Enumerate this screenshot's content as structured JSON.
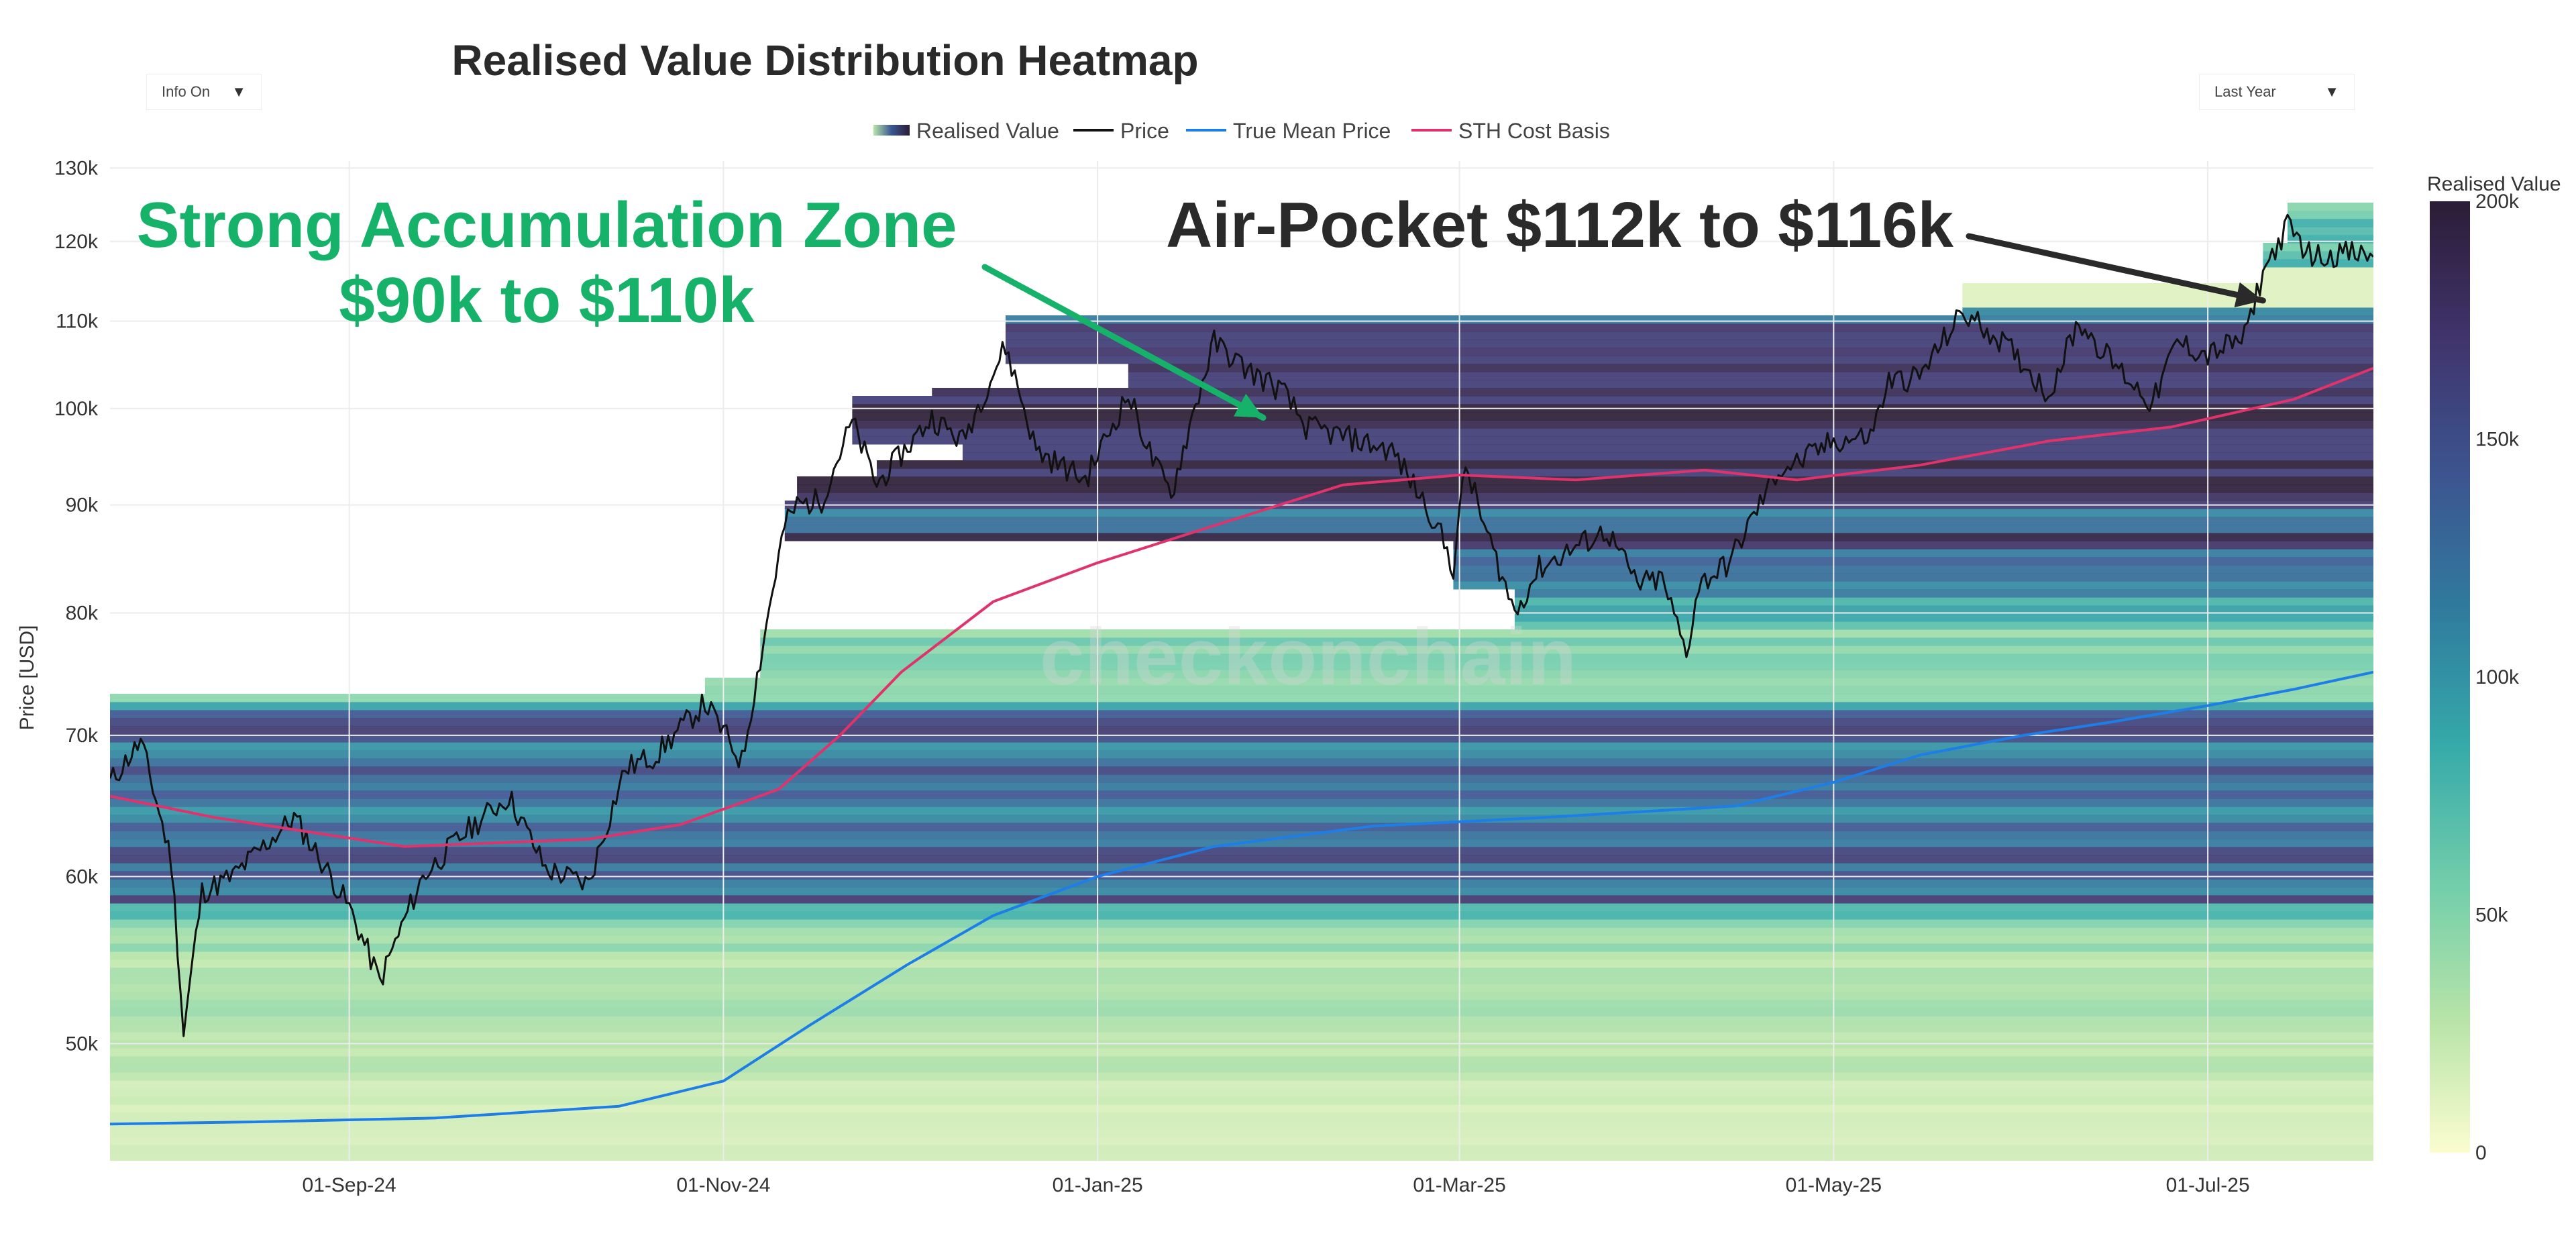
{
  "controls": {
    "info_toggle": "Info On",
    "range_select": "Last Year",
    "caret": "▼"
  },
  "chart_data": {
    "type": "heatmap",
    "title": "Realised Value Distribution Heatmap",
    "xlabel": "",
    "ylabel": "Price [USD]",
    "y_scale": "log",
    "ylim": [
      44000,
      131000
    ],
    "x_range": [
      "2024-07-24",
      "2025-07-28"
    ],
    "x_tick_labels": [
      "01-Sep-24",
      "01-Nov-24",
      "01-Jan-25",
      "01-Mar-25",
      "01-May-25",
      "01-Jul-25"
    ],
    "x_tick_dates": [
      "2024-09-01",
      "2024-11-01",
      "2025-01-01",
      "2025-03-01",
      "2025-05-01",
      "2025-07-01"
    ],
    "y_ticks": [
      50000,
      60000,
      70000,
      80000,
      90000,
      100000,
      110000,
      120000,
      130000
    ],
    "y_tick_labels": [
      "50k",
      "60k",
      "70k",
      "80k",
      "90k",
      "100k",
      "110k",
      "120k",
      "130k"
    ],
    "legend": [
      "Realised Value",
      "Price",
      "True Mean Price",
      "STH Cost Basis"
    ],
    "colorbar": {
      "title": "Realised Value",
      "range": [
        0,
        200000
      ],
      "ticks": [
        0,
        50000,
        100000,
        150000,
        200000
      ],
      "tick_labels": [
        "0",
        "50k",
        "100k",
        "150k",
        "200k"
      ],
      "colors": [
        "#fbfcd0",
        "#b7e4a8",
        "#73ceab",
        "#35a9a9",
        "#307b9e",
        "#3c5590",
        "#40336b",
        "#2b1d36"
      ]
    },
    "series": [
      {
        "name": "Price",
        "color": "#111111",
        "points": [
          [
            "2024-07-24",
            66500
          ],
          [
            "2024-07-29",
            69500
          ],
          [
            "2024-08-03",
            61000
          ],
          [
            "2024-08-05",
            50500
          ],
          [
            "2024-08-08",
            59000
          ],
          [
            "2024-08-13",
            60000
          ],
          [
            "2024-08-23",
            64000
          ],
          [
            "2024-08-26",
            62000
          ],
          [
            "2024-09-01",
            58000
          ],
          [
            "2024-09-06",
            53500
          ],
          [
            "2024-09-13",
            60000
          ],
          [
            "2024-09-20",
            63000
          ],
          [
            "2024-09-27",
            65500
          ],
          [
            "2024-10-03",
            60500
          ],
          [
            "2024-10-10",
            59500
          ],
          [
            "2024-10-16",
            67500
          ],
          [
            "2024-10-21",
            68500
          ],
          [
            "2024-10-29",
            72500
          ],
          [
            "2024-11-04",
            68000
          ],
          [
            "2024-11-07",
            76000
          ],
          [
            "2024-11-11",
            88000
          ],
          [
            "2024-11-13",
            90000
          ],
          [
            "2024-11-17",
            90500
          ],
          [
            "2024-11-22",
            98500
          ],
          [
            "2024-11-26",
            92000
          ],
          [
            "2024-12-05",
            99000
          ],
          [
            "2024-12-10",
            96500
          ],
          [
            "2024-12-17",
            107000
          ],
          [
            "2024-12-22",
            95500
          ],
          [
            "2024-12-30",
            92500
          ],
          [
            "2025-01-06",
            101500
          ],
          [
            "2025-01-10",
            94500
          ],
          [
            "2025-01-13",
            91000
          ],
          [
            "2025-01-20",
            107500
          ],
          [
            "2025-01-25",
            104500
          ],
          [
            "2025-01-31",
            102000
          ],
          [
            "2025-02-04",
            98000
          ],
          [
            "2025-02-10",
            97000
          ],
          [
            "2025-02-18",
            95500
          ],
          [
            "2025-02-25",
            88500
          ],
          [
            "2025-02-28",
            84000
          ],
          [
            "2025-03-02",
            94000
          ],
          [
            "2025-03-05",
            88000
          ],
          [
            "2025-03-10",
            80000
          ],
          [
            "2025-03-14",
            84000
          ],
          [
            "2025-03-20",
            86000
          ],
          [
            "2025-03-25",
            87500
          ],
          [
            "2025-03-30",
            82500
          ],
          [
            "2025-04-03",
            83000
          ],
          [
            "2025-04-07",
            76500
          ],
          [
            "2025-04-09",
            82500
          ],
          [
            "2025-04-14",
            84500
          ],
          [
            "2025-04-22",
            93500
          ],
          [
            "2025-04-26",
            94500
          ],
          [
            "2025-05-01",
            96500
          ],
          [
            "2025-05-07",
            97000
          ],
          [
            "2025-05-10",
            103000
          ],
          [
            "2025-05-15",
            103500
          ],
          [
            "2025-05-22",
            111000
          ],
          [
            "2025-05-27",
            108500
          ],
          [
            "2025-06-01",
            105000
          ],
          [
            "2025-06-05",
            101500
          ],
          [
            "2025-06-10",
            110000
          ],
          [
            "2025-06-15",
            105500
          ],
          [
            "2025-06-22",
            100500
          ],
          [
            "2025-06-26",
            107500
          ],
          [
            "2025-07-01",
            106000
          ],
          [
            "2025-07-07",
            108000
          ],
          [
            "2025-07-10",
            116000
          ],
          [
            "2025-07-14",
            122000
          ],
          [
            "2025-07-18",
            118000
          ],
          [
            "2025-07-23",
            118500
          ],
          [
            "2025-07-28",
            118000
          ]
        ]
      },
      {
        "name": "True Mean Price",
        "color": "#1e7ee8",
        "points": [
          [
            "2024-07-24",
            45800
          ],
          [
            "2024-08-15",
            45900
          ],
          [
            "2024-09-15",
            46100
          ],
          [
            "2024-10-15",
            46700
          ],
          [
            "2024-11-01",
            48000
          ],
          [
            "2024-11-15",
            51000
          ],
          [
            "2024-12-01",
            54500
          ],
          [
            "2024-12-15",
            57500
          ],
          [
            "2025-01-01",
            60000
          ],
          [
            "2025-01-20",
            62000
          ],
          [
            "2025-02-15",
            63400
          ],
          [
            "2025-03-15",
            64000
          ],
          [
            "2025-04-15",
            64800
          ],
          [
            "2025-05-01",
            66500
          ],
          [
            "2025-05-15",
            68500
          ],
          [
            "2025-06-01",
            70000
          ],
          [
            "2025-06-15",
            71000
          ],
          [
            "2025-07-01",
            72300
          ],
          [
            "2025-07-15",
            73600
          ],
          [
            "2025-07-28",
            75000
          ]
        ]
      },
      {
        "name": "STH Cost Basis",
        "color": "#e0336b",
        "points": [
          [
            "2024-07-24",
            65500
          ],
          [
            "2024-08-10",
            64000
          ],
          [
            "2024-09-10",
            62000
          ],
          [
            "2024-10-10",
            62500
          ],
          [
            "2024-10-25",
            63500
          ],
          [
            "2024-11-10",
            66000
          ],
          [
            "2024-11-20",
            70000
          ],
          [
            "2024-11-30",
            75000
          ],
          [
            "2024-12-15",
            81000
          ],
          [
            "2025-01-01",
            84500
          ],
          [
            "2025-01-20",
            88000
          ],
          [
            "2025-02-10",
            92000
          ],
          [
            "2025-03-01",
            93000
          ],
          [
            "2025-03-20",
            92500
          ],
          [
            "2025-04-10",
            93500
          ],
          [
            "2025-04-25",
            92500
          ],
          [
            "2025-05-15",
            94000
          ],
          [
            "2025-06-05",
            96500
          ],
          [
            "2025-06-25",
            98000
          ],
          [
            "2025-07-15",
            101000
          ],
          [
            "2025-07-28",
            104500
          ]
        ]
      }
    ],
    "annotations": [
      {
        "lines": [
          "Strong Accumulation Zone",
          "$90k to $110k"
        ],
        "arrow_to": [
          "2025-01-28",
          99000
        ],
        "color": "#17b26a"
      },
      {
        "lines": [
          "Air-Pocket $112k to $116k"
        ],
        "arrow_to": [
          "2025-07-10",
          112500
        ],
        "color": "#2a2a2a"
      }
    ],
    "watermark": "checkonchain"
  }
}
